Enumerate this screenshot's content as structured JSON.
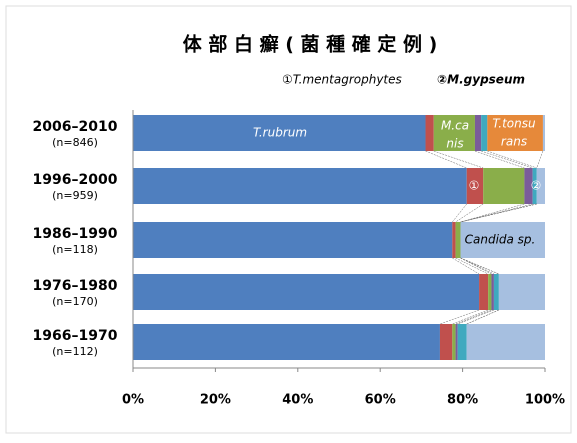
{
  "chart_data": {
    "type": "stacked-bar-horizontal",
    "title": "体 部 白 癬 ( 菌 種 確 定 例 )",
    "legend_notes": [
      "①T.mentagrophytes",
      "②M.gypseum"
    ],
    "categories": [
      "2006–2010",
      "1996–2000",
      "1986–1990",
      "1976–1980",
      "1966–1970"
    ],
    "sublabels": [
      "(n=846)",
      "(n=959)",
      "(n=118)",
      "(n=170)",
      "(n=112)"
    ],
    "series": [
      {
        "color": "#4f7fbf",
        "values": [
          71,
          81,
          77.5,
          84,
          74.5
        ]
      },
      {
        "color": "#c0504d",
        "values": [
          2,
          4,
          0.8,
          2.2,
          3
        ]
      },
      {
        "color": "#8aae4a",
        "values": [
          10,
          10,
          1.2,
          0.8,
          0.8
        ]
      },
      {
        "color": "#7a5c9a",
        "values": [
          1.5,
          2,
          0,
          0.6,
          0.5
        ]
      },
      {
        "color": "#3fa9bf",
        "values": [
          1.5,
          1,
          0,
          1.2,
          2.2
        ]
      },
      {
        "color": "#e6893a",
        "values": [
          13.5,
          0,
          0,
          0,
          0
        ]
      },
      {
        "color": "#a6bfe0",
        "values": [
          0.5,
          2,
          20.5,
          11.2,
          19
        ]
      }
    ],
    "annotations": [
      "T.rubrum",
      "M.ca",
      "nis",
      "T.tonsu",
      "rans",
      "①",
      "②",
      "Candida sp."
    ],
    "xlim": [
      0,
      100
    ],
    "xticks": [
      {
        "value": 0,
        "label": "0%"
      },
      {
        "value": 20,
        "label": "20%"
      },
      {
        "value": 40,
        "label": "40%"
      },
      {
        "value": 60,
        "label": "60%"
      },
      {
        "value": 80,
        "label": "80%"
      },
      {
        "value": 100,
        "label": "100%"
      }
    ]
  }
}
